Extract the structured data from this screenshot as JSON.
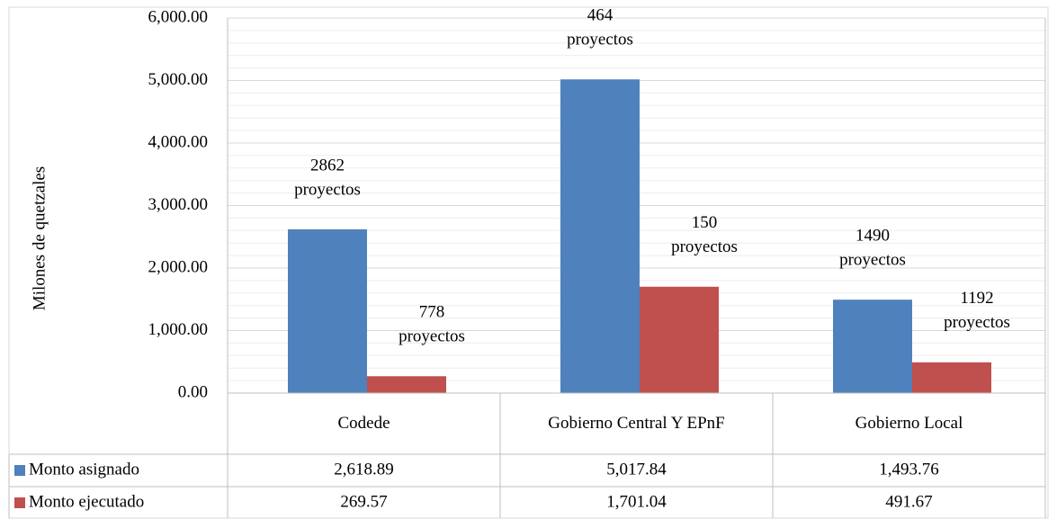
{
  "chart_data": {
    "type": "bar",
    "y_axis_label": "Milones de quetzales",
    "categories": [
      "Codede",
      "Gobierno Central Y EPnF",
      "Gobierno Local"
    ],
    "series": [
      {
        "name": "Monto asignado",
        "color": "#4f81bd",
        "values": [
          2618.89,
          5017.84,
          1493.76
        ],
        "value_labels": [
          "2,618.89",
          "5,017.84",
          "1,493.76"
        ],
        "annotations": [
          [
            "2862",
            "proyectos"
          ],
          [
            "464",
            "proyectos"
          ],
          [
            "1490",
            "proyectos"
          ]
        ]
      },
      {
        "name": "Monto ejecutado",
        "color": "#c0504d",
        "values": [
          269.57,
          1701.04,
          491.67
        ],
        "value_labels": [
          "269.57",
          "1,701.04",
          "491.67"
        ],
        "annotations": [
          [
            "778",
            "proyectos"
          ],
          [
            "150",
            "proyectos"
          ],
          [
            "1192",
            "proyectos"
          ]
        ]
      }
    ],
    "ylim": [
      0,
      6000
    ],
    "yticks": [
      {
        "value": 0,
        "label": "0.00"
      },
      {
        "value": 1000,
        "label": "1,000.00"
      },
      {
        "value": 2000,
        "label": "2,000.00"
      },
      {
        "value": 3000,
        "label": "3,000.00"
      },
      {
        "value": 4000,
        "label": "4,000.00"
      },
      {
        "value": 5000,
        "label": "5,000.00"
      },
      {
        "value": 6000,
        "label": "6,000.00"
      }
    ],
    "minor_yticks": [
      200,
      400,
      600,
      800,
      1200,
      1400,
      1600,
      1800,
      2200,
      2400,
      2600,
      2800,
      3200,
      3400,
      3600,
      3800,
      4200,
      4400,
      4600,
      4800,
      5200,
      5400,
      5600,
      5800
    ],
    "grid": true
  }
}
